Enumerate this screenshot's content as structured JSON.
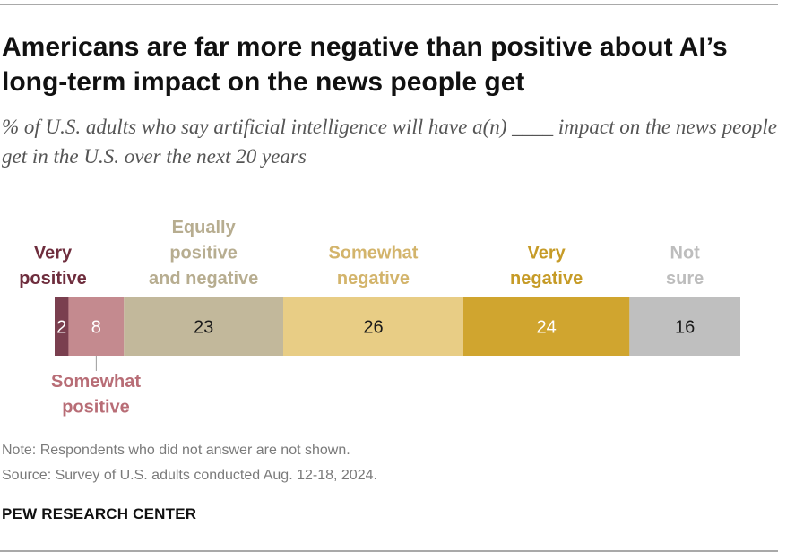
{
  "title": "Americans are far more negative than positive about AI’s long-term impact on the news people get",
  "subtitle": "% of U.S. adults who say artificial intelligence will have a(n) ____ impact on the news people get in the U.S. over the next 20 years",
  "chart_data": {
    "type": "bar",
    "orientation": "horizontal-stacked",
    "categories": [
      "Very positive",
      "Somewhat positive",
      "Equally positive and negative",
      "Somewhat negative",
      "Very negative",
      "Not sure"
    ],
    "series": [
      {
        "values": [
          2,
          8,
          23,
          26,
          24,
          16
        ]
      }
    ],
    "colors": [
      "#7a3f4f",
      "#c48a8f",
      "#c2b89b",
      "#e8cd85",
      "#d0a52f",
      "#bfbfbf"
    ],
    "label_colors": [
      "#6e2d3d",
      "#b86d76",
      "#b7ad90",
      "#d3b46b",
      "#c69b27",
      "#bdbdbd"
    ],
    "value_text_colors": [
      "#ffffff",
      "#ffffff",
      "#1a1a1a",
      "#1a1a1a",
      "#ffffff",
      "#1a1a1a"
    ]
  },
  "note": "Note: Respondents who did not answer are not shown.",
  "source": "Source: Survey of U.S. adults conducted Aug. 12-18, 2024.",
  "brand": "PEW RESEARCH CENTER"
}
